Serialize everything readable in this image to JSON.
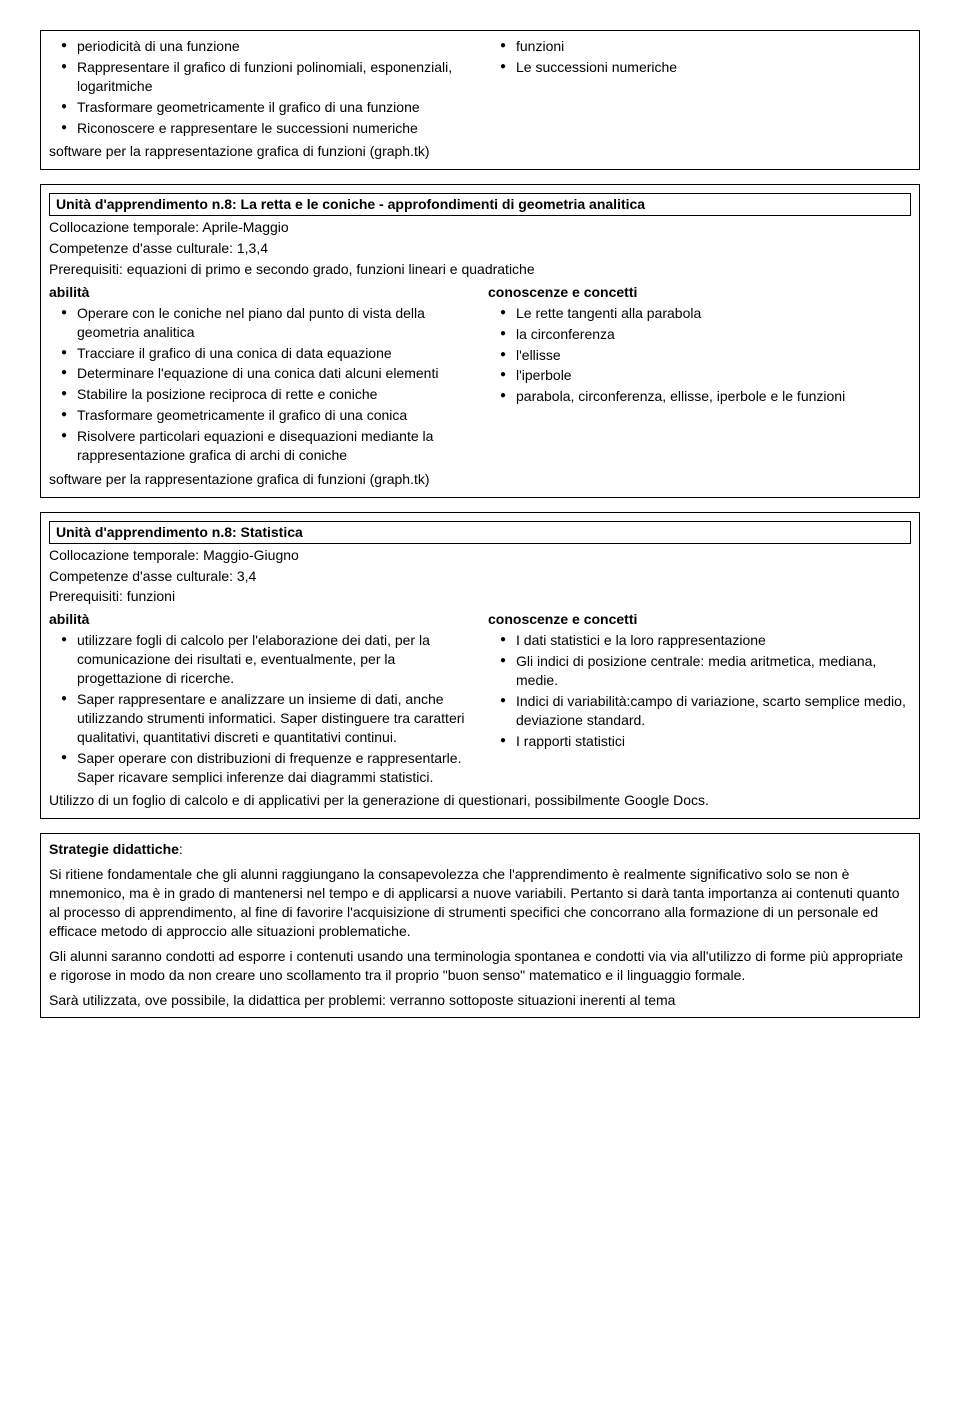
{
  "box1": {
    "left_items": [
      "periodicità di una funzione",
      "Rappresentare      il grafico di funzioni polinomiali, esponenziali, logaritmiche",
      "Trasformare        geometricamente il grafico di una funzione",
      "Riconoscere e rappresentare le successioni numeriche"
    ],
    "right_items": [
      "funzioni",
      "Le successioni numeriche"
    ],
    "footer": "software per la rappresentazione grafica di funzioni (graph.tk)"
  },
  "box2": {
    "title": "Unità d'apprendimento n.8: La retta e le coniche - approfondimenti di geometria analitica",
    "colloc": "Collocazione temporale: Aprile-Maggio",
    "comp": "Competenze d'asse culturale: 1,3,4",
    "prereq": "Prerequisiti: equazioni di primo e secondo grado, funzioni lineari e quadratiche",
    "abilita_label": "abilità",
    "left_items": [
      "Operare       con le coniche nel piano dal punto di vista della geometria         analitica",
      "Tracciare il grafico di una conica di data equazione",
      "Determinare l'equazione di una conica dati alcuni elementi",
      "Stabilire la posizione reciproca di rette e coniche",
      "Trasformare geometricamente il grafico di una conica",
      "Risolvere particolari equazioni e disequazioni mediante la rappresentazione grafica di archi di coniche"
    ],
    "conosc_label": "conoscenze e concetti",
    "right_items": [
      "Le rette tangenti alla parabola",
      "la circonferenza",
      "l'ellisse",
      "l'iperbole",
      "parabola, circonferenza, ellisse, iperbole e le funzioni"
    ],
    "footer": "software per la rappresentazione grafica di funzioni (graph.tk)"
  },
  "box3": {
    "title": "Unità d'apprendimento n.8: Statistica",
    "colloc": "Collocazione temporale: Maggio-Giugno",
    "comp": "Competenze d'asse culturale: 3,4",
    "prereq": "Prerequisiti: funzioni",
    "abilita_label": "abilità",
    "left_items": [
      "utilizzare fogli di calcolo per l'elaborazione dei dati, per la comunicazione dei risultati e, eventualmente, per la progettazione di ricerche.",
      "Saper rappresentare e analizzare un insieme di dati, anche utilizzando strumenti informatici. Saper distinguere tra caratteri qualitativi, quantitativi discreti e quantitativi continui.",
      "Saper operare con distribuzioni di frequenze e rappresentarle. Saper ricavare semplici inferenze dai diagrammi statistici."
    ],
    "conosc_label": "conoscenze e concetti",
    "right_items": [
      "I dati statistici e la loro rappresentazione",
      "Gli indici di posizione centrale: media aritmetica, mediana, medie.",
      "Indici di variabilità:campo di variazione, scarto semplice medio, deviazione standard.",
      "I rapporti statistici"
    ],
    "footer": "Utilizzo di un foglio di calcolo e di applicativi per la generazione di questionari, possibilmente Google Docs."
  },
  "box4": {
    "heading": "Strategie didattiche",
    "para1": "Si ritiene fondamentale che gli alunni raggiungano la consapevolezza che l'apprendimento è realmente significativo solo se non è mnemonico, ma è in grado di mantenersi nel tempo e di applicarsi a nuove variabili. Pertanto si darà tanta importanza ai contenuti quanto al processo di apprendimento, al fine di favorire l'acquisizione di strumenti specifici che concorrano alla formazione di un personale ed efficace metodo di approccio alle situazioni problematiche.",
    "para2": "Gli alunni saranno condotti ad esporre i contenuti usando una terminologia spontanea e condotti via via all'utilizzo di forme più appropriate e rigorose in modo da non creare uno scollamento tra il proprio \"buon senso\" matematico e il linguaggio formale.",
    "para3": "Sarà utilizzata, ove possibile, la didattica per problemi: verranno sottoposte situazioni inerenti al tema"
  }
}
